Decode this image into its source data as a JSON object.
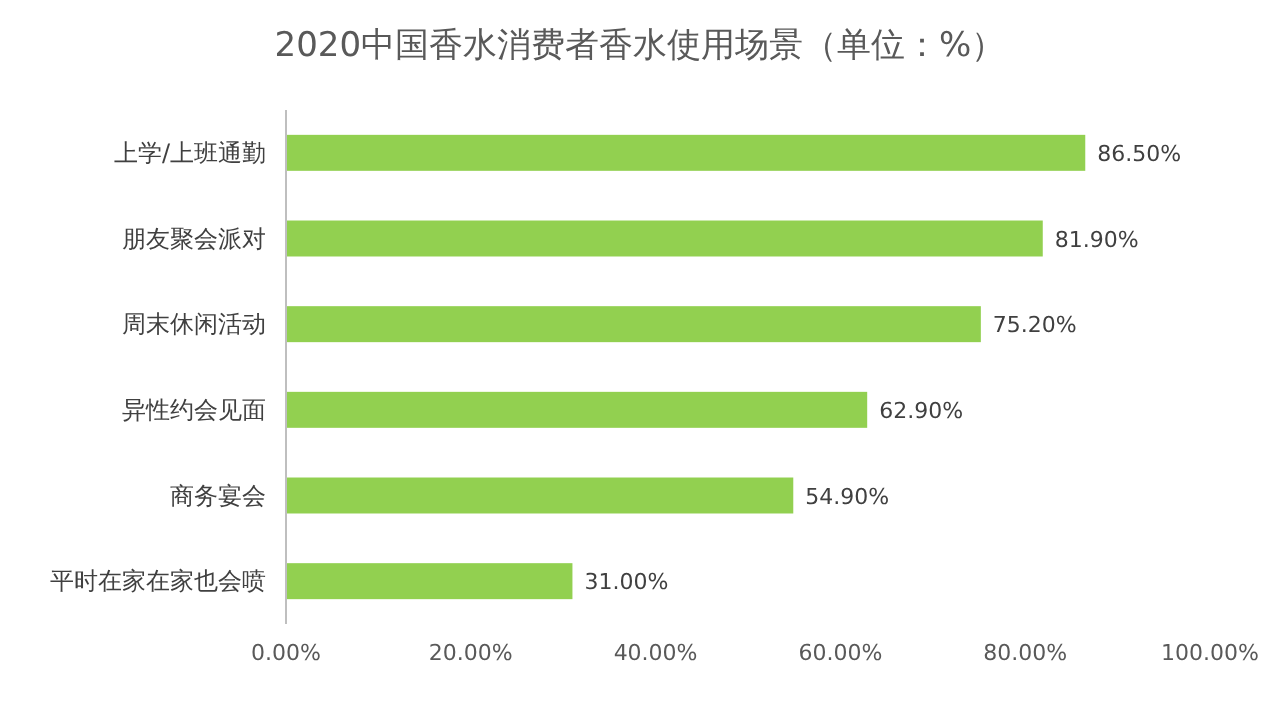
{
  "chart_data": {
    "type": "bar",
    "orientation": "horizontal",
    "title": "2020中国香水消费者香水使用场景（单位：%）",
    "categories": [
      "上学/上班通勤",
      "朋友聚会派对",
      "周末休闲活动",
      "异性约会见面",
      "商务宴会",
      "平时在家在家也会喷"
    ],
    "values": [
      86.5,
      81.9,
      75.2,
      62.9,
      54.9,
      31.0
    ],
    "value_labels": [
      "86.50%",
      "81.90%",
      "75.20%",
      "62.90%",
      "54.90%",
      "31.00%"
    ],
    "color": "#92d050",
    "xlim": [
      0,
      100
    ],
    "xticks": [
      {
        "value": 0,
        "label": "0.00%"
      },
      {
        "value": 20,
        "label": "20.00%"
      },
      {
        "value": 40,
        "label": "40.00%"
      },
      {
        "value": 60,
        "label": "60.00%"
      },
      {
        "value": 80,
        "label": "80.00%"
      },
      {
        "value": 100,
        "label": "100.00%"
      }
    ]
  }
}
